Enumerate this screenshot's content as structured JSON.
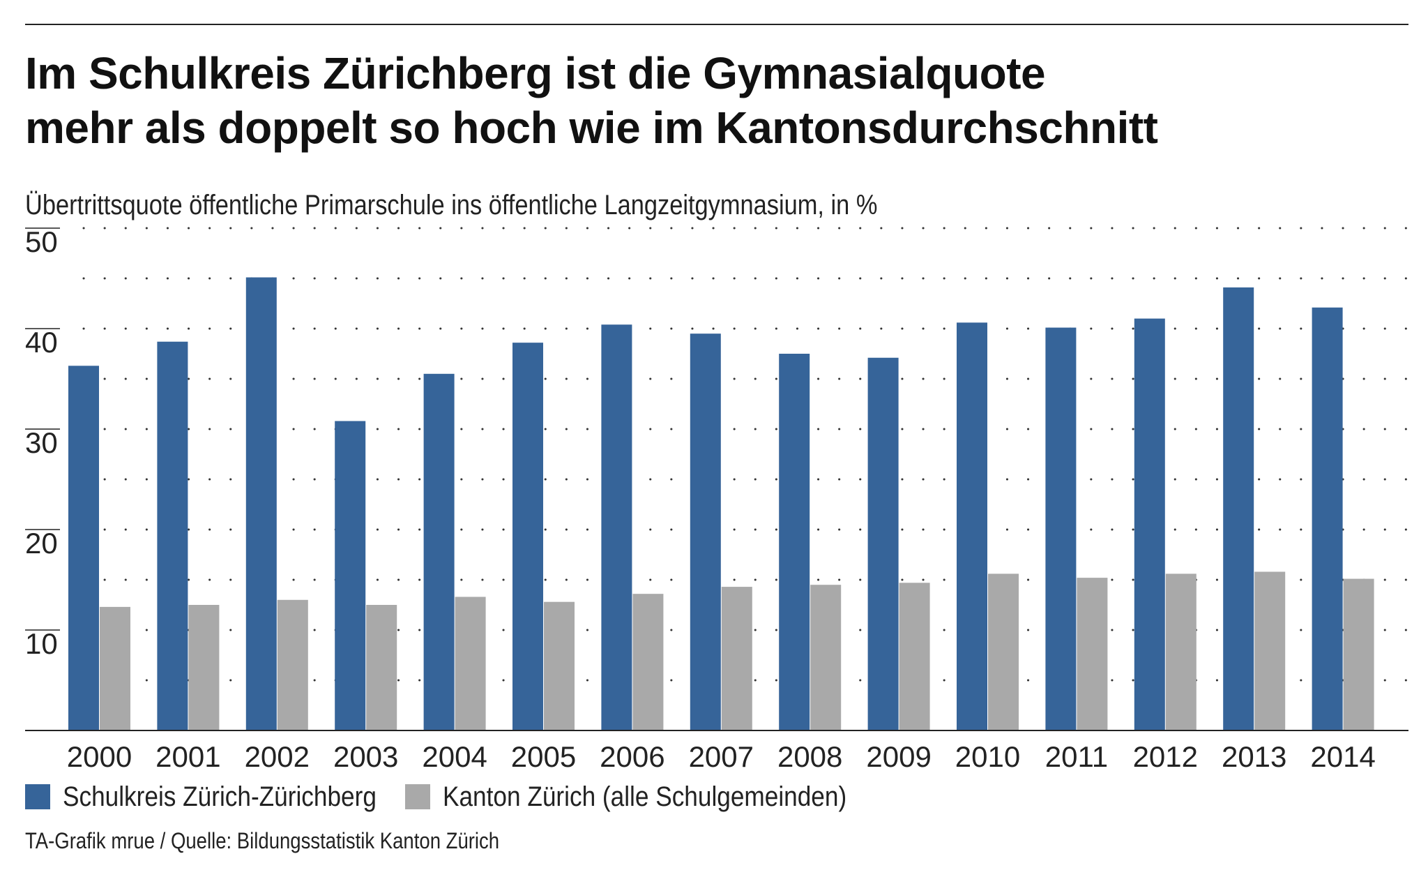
{
  "title_lines": [
    "Im Schulkreis Zürichberg ist die Gymnasialquote",
    "mehr als doppelt so hoch wie im Kantonsdurchschnitt"
  ],
  "subtitle": "Übertrittsquote öffentliche Primarschule ins öffentliche Langzeitgymnasium, in %",
  "source": "TA-Grafik mrue / Quelle: Bildungsstatistik Kanton Zürich",
  "colors": {
    "zuerichberg": "#366499",
    "kanton": "#a9a9a9",
    "grid": "#333333",
    "axis": "#222222"
  },
  "chart_data": {
    "type": "bar",
    "title": "Im Schulkreis Zürichberg ist die Gymnasialquote mehr als doppelt so hoch wie im Kantonsdurchschnitt",
    "ylabel": "Übertrittsquote öffentliche Primarschule ins öffentliche Langzeitgymnasium, in %",
    "xlabel": "",
    "ylim": [
      0,
      50
    ],
    "yticks": [
      10,
      20,
      30,
      40,
      50
    ],
    "grid": "dotted horizontal every 5",
    "legend_position": "bottom-left",
    "categories": [
      "2000",
      "2001",
      "2002",
      "2003",
      "2004",
      "2005",
      "2006",
      "2007",
      "2008",
      "2009",
      "2010",
      "2011",
      "2012",
      "2013",
      "2014"
    ],
    "series": [
      {
        "name": "Schulkreis Zürich-Zürichberg",
        "color_key": "zuerichberg",
        "values": [
          36.3,
          38.7,
          45.1,
          30.8,
          35.5,
          38.6,
          40.4,
          39.5,
          37.5,
          37.1,
          40.6,
          40.1,
          41.0,
          44.1,
          42.1
        ]
      },
      {
        "name": "Kanton Zürich (alle Schulgemeinden)",
        "color_key": "kanton",
        "values": [
          12.3,
          12.5,
          13.0,
          12.5,
          13.3,
          12.8,
          13.6,
          14.3,
          14.5,
          14.7,
          15.6,
          15.2,
          15.6,
          15.8,
          15.1
        ]
      }
    ]
  }
}
